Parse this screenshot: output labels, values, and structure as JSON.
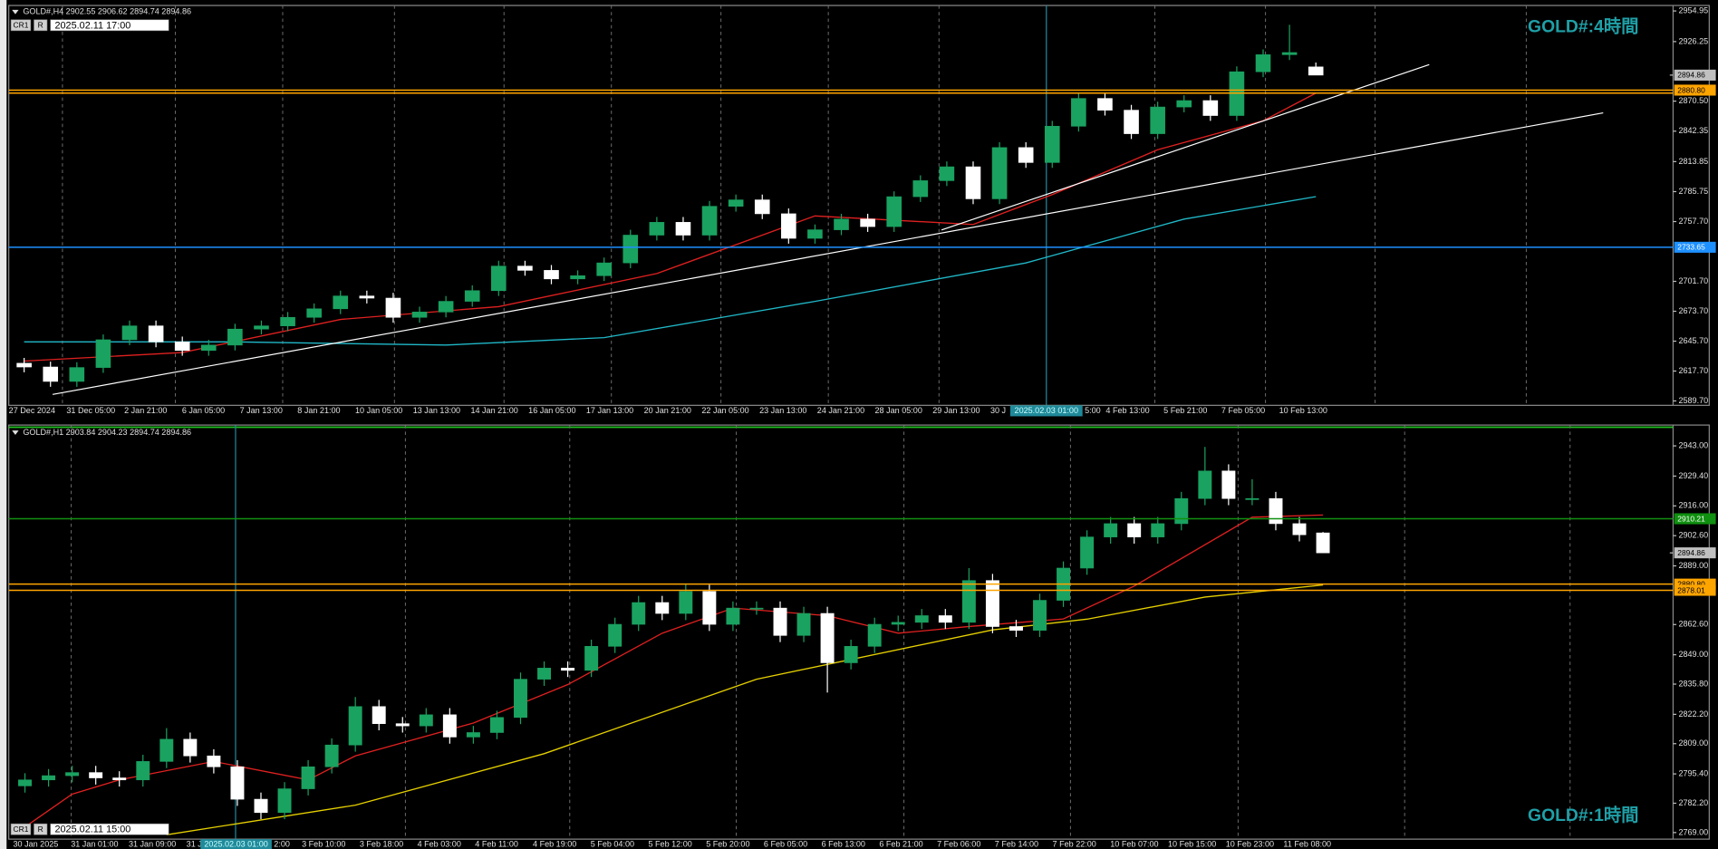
{
  "chart_data": [
    {
      "type": "candlestick",
      "header": "GOLD#,H4 2902.55 2906.62 2894.74 2894.86",
      "label": "GOLD#:4時間",
      "info": [
        "CR1",
        "R",
        "2025.02.11 17:00"
      ],
      "cursor_label": "2025.02.03 01:00",
      "categories": [
        "27 Dec 2024",
        "31 Dec 05:00",
        "2 Jan 21:00",
        "6 Jan 05:00",
        "7 Jan 13:00",
        "8 Jan 21:00",
        "10 Jan 05:00",
        "13 Jan 13:00",
        "14 Jan 21:00",
        "16 Jan 05:00",
        "17 Jan 13:00",
        "20 Jan 21:00",
        "22 Jan 05:00",
        "23 Jan 13:00",
        "24 Jan 21:00",
        "28 Jan 05:00",
        "29 Jan 13:00",
        "30 J",
        "5:00",
        "4 Feb 13:00",
        "5 Feb 21:00",
        "7 Feb 05:00",
        "10 Feb 13:00"
      ],
      "ylim": [
        2589.7,
        2954.95
      ],
      "yticks": [
        2954.95,
        2926.25,
        {
          "value": 2870.5,
          "label": "2870.50"
        },
        2842.35,
        2813.85,
        2785.75,
        {
          "value": 2757.7,
          "label": "2757.70"
        },
        {
          "value": 2701.7,
          "label": "2701.70"
        },
        {
          "value": 2673.7,
          "label": "2673.70"
        },
        {
          "value": 2645.7,
          "label": "2645.70"
        },
        {
          "value": 2617.7,
          "label": "2617.70"
        },
        {
          "value": 2589.7,
          "label": "2589.70"
        }
      ],
      "up_color": "#1aa260",
      "down_color": "#ffffff",
      "ohlc": [
        [
          2625,
          2630,
          2616.5,
          2621.5
        ],
        [
          2621.5,
          2626.5,
          2603,
          2608
        ],
        [
          2608,
          2626,
          2603,
          2621
        ],
        [
          2621,
          2652,
          2616,
          2647
        ],
        [
          2647,
          2665,
          2642,
          2660
        ],
        [
          2660,
          2665,
          2640,
          2645
        ],
        [
          2645,
          2650,
          2632,
          2637
        ],
        [
          2637,
          2647,
          2632,
          2642
        ],
        [
          2642,
          2662,
          2637,
          2657
        ],
        [
          2657,
          2665,
          2652,
          2660
        ],
        [
          2660,
          2673,
          2655,
          2668
        ],
        [
          2668,
          2681,
          2663,
          2676
        ],
        [
          2676,
          2693,
          2671,
          2688
        ],
        [
          2688,
          2693,
          2681,
          2686
        ],
        [
          2686,
          2691,
          2663,
          2668
        ],
        [
          2668,
          2678,
          2663,
          2673
        ],
        [
          2673,
          2688,
          2668,
          2683
        ],
        [
          2683,
          2698,
          2678,
          2693
        ],
        [
          2693,
          2721,
          2688,
          2716
        ],
        [
          2716,
          2721,
          2707,
          2712
        ],
        [
          2712,
          2717,
          2699,
          2704
        ],
        [
          2704,
          2712,
          2699,
          2707
        ],
        [
          2707,
          2724,
          2702,
          2719
        ],
        [
          2719,
          2750,
          2714,
          2745
        ],
        [
          2745,
          2762,
          2740,
          2757
        ],
        [
          2757,
          2762,
          2740,
          2745
        ],
        [
          2745,
          2777,
          2740,
          2772
        ],
        [
          2772,
          2783,
          2767,
          2778
        ],
        [
          2778,
          2783,
          2760,
          2765
        ],
        [
          2765,
          2770,
          2737,
          2742
        ],
        [
          2742,
          2755,
          2737,
          2750
        ],
        [
          2750,
          2765,
          2745,
          2760
        ],
        [
          2760,
          2765,
          2748,
          2753
        ],
        [
          2753,
          2786,
          2748,
          2781
        ],
        [
          2781,
          2801,
          2776,
          2796
        ],
        [
          2796,
          2814,
          2791,
          2809
        ],
        [
          2809,
          2814,
          2774,
          2779
        ],
        [
          2779,
          2832,
          2774,
          2827
        ],
        [
          2827,
          2832,
          2808,
          2813
        ],
        [
          2813,
          2852,
          2808,
          2847
        ],
        [
          2847,
          2878,
          2842,
          2873
        ],
        [
          2873,
          2878,
          2857,
          2862
        ],
        [
          2862,
          2867,
          2835,
          2840
        ],
        [
          2840,
          2870,
          2835,
          2865
        ],
        [
          2865,
          2876,
          2860,
          2871
        ],
        [
          2871,
          2876,
          2852,
          2857
        ],
        [
          2857,
          2903,
          2852,
          2898
        ],
        [
          2898,
          2919,
          2893,
          2914
        ],
        [
          2914,
          2942,
          2909,
          2916
        ],
        [
          2902.55,
          2906.62,
          2894.74,
          2894.86
        ]
      ],
      "lines": [
        {
          "color": "#e02020",
          "x": [
            0,
            6,
            12,
            18,
            24,
            30,
            36,
            39,
            43,
            47,
            49
          ],
          "values": [
            2627,
            2635,
            2666,
            2678,
            2709,
            2763,
            2755,
            2783,
            2825,
            2852,
            2878
          ]
        },
        {
          "color": "#20b8c8",
          "x": [
            0,
            8,
            16,
            22,
            30,
            38,
            44,
            49
          ],
          "values": [
            2645,
            2645,
            2642,
            2649,
            2683,
            2719,
            2760,
            2781
          ]
        }
      ],
      "trendlines": [
        {
          "color": "#ffffff",
          "x": [
            1.08,
            59.9
          ],
          "values": [
            2595.8,
            2859.5
          ]
        },
        {
          "color": "#ffffff",
          "x": [
            34.8,
            53.3
          ],
          "values": [
            2749.8,
            2904.7
          ]
        }
      ],
      "levels": [
        {
          "value": 2894.86,
          "label": "2894.86",
          "color": "#c0c0c0"
        },
        {
          "value": 2880.8,
          "label": "2880.80",
          "color": "#ffa500"
        },
        {
          "value": 2878.01,
          "color": "#ffa500"
        },
        {
          "value": 2733.65,
          "label": "2733.65",
          "color": "#1e90ff"
        }
      ]
    },
    {
      "type": "candlestick",
      "header": "GOLD#,H1 2903.84 2904.23 2894.74 2894.86",
      "label": "GOLD#:1時間",
      "info": [
        "CR1",
        "R",
        "2025.02.11 15:00"
      ],
      "cursor_label": "2025.02.03 01:00",
      "categories": [
        "30 Jan 2025",
        "31 Jan 01:00",
        "31 Jan 09:00",
        "31 J",
        "2:00",
        "3 Feb 10:00",
        "3 Feb 18:00",
        "4 Feb 03:00",
        "4 Feb 11:00",
        "4 Feb 19:00",
        "5 Feb 04:00",
        "5 Feb 12:00",
        "5 Feb 20:00",
        "6 Feb 05:00",
        "6 Feb 13:00",
        "6 Feb 21:00",
        "7 Feb 06:00",
        "7 Feb 14:00",
        "7 Feb 22:00",
        "10 Feb 07:00",
        "10 Feb 15:00",
        "10 Feb 23:00",
        "11 Feb 08:00"
      ],
      "ylim": [
        2769,
        2943
      ],
      "yticks": [
        {
          "value": 2943,
          "label": "2943.00"
        },
        {
          "value": 2929.4,
          "label": "2929.40"
        },
        {
          "value": 2916,
          "label": "2916.00"
        },
        {
          "value": 2902.6,
          "label": "2902.60"
        },
        {
          "value": 2889,
          "label": "2889.00"
        },
        {
          "value": 2862.6,
          "label": "2862.60"
        },
        {
          "value": 2849,
          "label": "2849.00"
        },
        {
          "value": 2835.8,
          "label": "2835.80"
        },
        {
          "value": 2822.2,
          "label": "2822.20"
        },
        {
          "value": 2809,
          "label": "2809.00"
        },
        {
          "value": 2795.4,
          "label": "2795.40"
        },
        {
          "value": 2782.2,
          "label": "2782.20"
        },
        {
          "value": 2769,
          "label": "2769.00"
        }
      ],
      "up_color": "#1aa260",
      "down_color": "#ffffff",
      "ohlc": [
        [
          2790,
          2795.7,
          2787,
          2792.7
        ],
        [
          2792.7,
          2797.6,
          2789.7,
          2794.6
        ],
        [
          2794.6,
          2799,
          2791.6,
          2796
        ],
        [
          2796,
          2799,
          2790.6,
          2793.6
        ],
        [
          2793.6,
          2796.6,
          2789.7,
          2792.7
        ],
        [
          2792.7,
          2804,
          2789.7,
          2801
        ],
        [
          2801,
          2816,
          2798,
          2811
        ],
        [
          2811,
          2814,
          2800.5,
          2803.5
        ],
        [
          2803.5,
          2806.5,
          2795.6,
          2798.6
        ],
        [
          2798.6,
          2801.6,
          2781,
          2784
        ],
        [
          2784,
          2787,
          2775,
          2778
        ],
        [
          2778,
          2791.7,
          2775,
          2788.7
        ],
        [
          2788.7,
          2801.6,
          2785.7,
          2798.6
        ],
        [
          2798.6,
          2811.4,
          2795.6,
          2808.4
        ],
        [
          2808.4,
          2830,
          2805.4,
          2825.7
        ],
        [
          2825.7,
          2828.7,
          2815,
          2818
        ],
        [
          2818,
          2821,
          2814,
          2817
        ],
        [
          2817,
          2825,
          2814,
          2822
        ],
        [
          2822,
          2825,
          2809,
          2812
        ],
        [
          2812,
          2817,
          2809,
          2814
        ],
        [
          2814,
          2823.8,
          2811,
          2820.8
        ],
        [
          2820.8,
          2841,
          2817.8,
          2838
        ],
        [
          2838,
          2846,
          2835,
          2843
        ],
        [
          2843,
          2846,
          2839,
          2842
        ],
        [
          2842,
          2855.8,
          2839,
          2852.8
        ],
        [
          2852.8,
          2865.7,
          2849.8,
          2862.7
        ],
        [
          2862.7,
          2875.5,
          2859.7,
          2872.5
        ],
        [
          2872.5,
          2875.5,
          2864.6,
          2867.6
        ],
        [
          2867.6,
          2881,
          2864.6,
          2877.5
        ],
        [
          2877.5,
          2880.5,
          2859.7,
          2862.7
        ],
        [
          2862.7,
          2873,
          2859.7,
          2870
        ],
        [
          2870,
          2873,
          2867,
          2870
        ],
        [
          2870,
          2873,
          2854.7,
          2857.7
        ],
        [
          2857.7,
          2870.6,
          2854.7,
          2867.6
        ],
        [
          2867.6,
          2870.6,
          2832,
          2845.4
        ],
        [
          2845.4,
          2855.8,
          2842.4,
          2852.8
        ],
        [
          2852.8,
          2865.7,
          2849.8,
          2862.7
        ],
        [
          2862.7,
          2866.6,
          2859.7,
          2863.6
        ],
        [
          2863.6,
          2869.6,
          2860.6,
          2866.6
        ],
        [
          2866.6,
          2869.6,
          2860.6,
          2863.6
        ],
        [
          2863.6,
          2888,
          2860.6,
          2882.4
        ],
        [
          2882.4,
          2885.4,
          2858.7,
          2861.7
        ],
        [
          2861.7,
          2864.7,
          2857,
          2860
        ],
        [
          2860,
          2876.5,
          2857,
          2873.5
        ],
        [
          2873.5,
          2891,
          2870.5,
          2888
        ],
        [
          2888,
          2905,
          2885,
          2902
        ],
        [
          2902,
          2911,
          2899,
          2908
        ],
        [
          2908,
          2911,
          2899,
          2902
        ],
        [
          2902,
          2911,
          2899,
          2908
        ],
        [
          2908,
          2922.3,
          2905,
          2919.3
        ],
        [
          2919.3,
          2942.5,
          2916.3,
          2931.7
        ],
        [
          2931.7,
          2934.7,
          2916.3,
          2919.3
        ],
        [
          2919.3,
          2928,
          2916.3,
          2919.3
        ],
        [
          2919.3,
          2922.3,
          2905,
          2908
        ],
        [
          2908,
          2911,
          2900,
          2903
        ],
        [
          2903.84,
          2904.23,
          2894.74,
          2894.86
        ]
      ],
      "lines": [
        {
          "color": "#e02020",
          "x": [
            0,
            2,
            4,
            8,
            12,
            14,
            19,
            23,
            27,
            30,
            34,
            37,
            40,
            44,
            47,
            52,
            55
          ],
          "values": [
            2771.5,
            2786.3,
            2792.7,
            2801,
            2792.7,
            2803.5,
            2818.3,
            2835.6,
            2858.7,
            2870,
            2866.6,
            2858.7,
            2861.7,
            2865.1,
            2879.9,
            2910.9,
            2911.9
          ]
        },
        {
          "color": "#e6d000",
          "x": [
            6,
            14,
            22,
            31,
            41,
            45,
            50,
            55
          ],
          "values": [
            2768,
            2781.3,
            2804.5,
            2838,
            2860.2,
            2865,
            2875,
            2880.4
          ]
        }
      ],
      "trendlines": [],
      "levels": [
        {
          "value": 2910.21,
          "label": "2910.21",
          "color": "#109010"
        },
        {
          "value": 2894.86,
          "label": "2894.86",
          "color": "#c0c0c0"
        },
        {
          "value": 2880.8,
          "label": "2880.80",
          "color": "#ffa500"
        },
        {
          "value": 2878.01,
          "label": "2878.01",
          "color": "#ffa500"
        }
      ]
    }
  ]
}
